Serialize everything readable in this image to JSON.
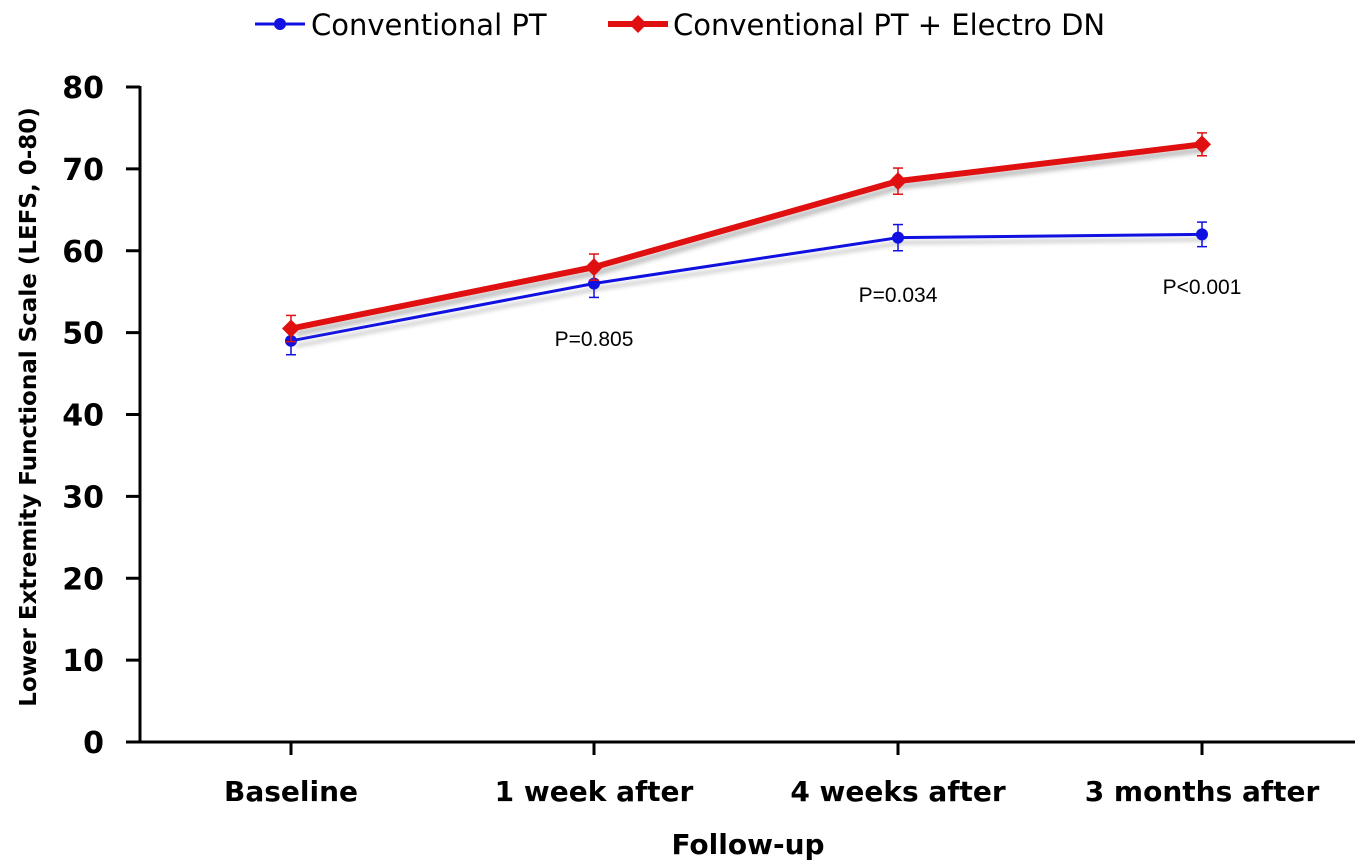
{
  "chart_data": {
    "type": "line",
    "categories": [
      "Baseline",
      "1 week after",
      "4 weeks after",
      "3 months after"
    ],
    "xlabel": "Follow-up",
    "ylabel": "Lower Extremity Functional Scale (LEFS, 0-80)",
    "ylim": [
      0,
      80
    ],
    "yticks": [
      0,
      10,
      20,
      30,
      40,
      50,
      60,
      70,
      80
    ],
    "grid": false,
    "legend_position": "top",
    "series": [
      {
        "name": "Conventional PT",
        "color": "#1010e0",
        "marker": "circle",
        "values": [
          49,
          56,
          61.6,
          62
        ],
        "error": [
          1.7,
          1.7,
          1.6,
          1.5
        ]
      },
      {
        "name": "Conventional PT + Electro DN",
        "color": "#e01010",
        "marker": "diamond",
        "values": [
          50.5,
          58,
          68.5,
          73
        ],
        "error": [
          1.6,
          1.6,
          1.6,
          1.4
        ]
      }
    ],
    "annotations": [
      {
        "category_index": 1,
        "text": "P=0.805",
        "y": 49.2
      },
      {
        "category_index": 2,
        "text": "P=0.034",
        "y": 54.6
      },
      {
        "category_index": 3,
        "text": "P<0.001",
        "y": 55.6
      }
    ]
  }
}
